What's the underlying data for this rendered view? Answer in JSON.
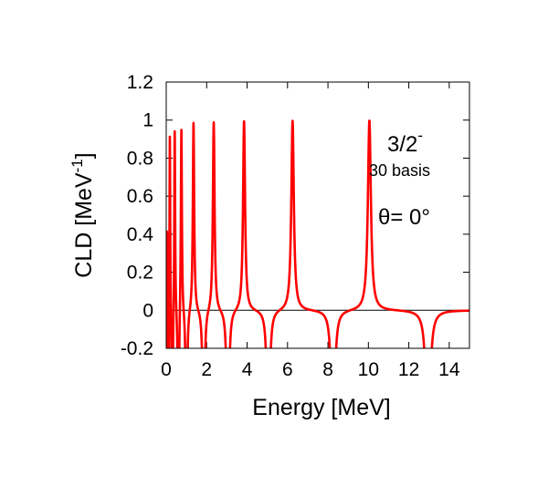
{
  "chart_data": {
    "type": "line",
    "title": "",
    "xlabel": "Energy [MeV]",
    "ylabel": "CLD [MeV",
    "ylabel_sup": "-1",
    "ylabel_end": "]",
    "xlim": [
      0,
      15
    ],
    "ylim": [
      -0.2,
      1.2
    ],
    "xticks": [
      0,
      2,
      4,
      6,
      8,
      10,
      12,
      14
    ],
    "xtick_labels": [
      "0",
      "2",
      "4",
      "6",
      "8",
      "10",
      "12",
      "14"
    ],
    "yticks": [
      -0.2,
      0,
      0.2,
      0.4,
      0.6,
      0.8,
      1,
      1.2
    ],
    "ytick_labels": [
      "-0.2",
      "0",
      "0.2",
      "0.4",
      "0.6",
      "0.8",
      "1",
      "1.2"
    ],
    "grid": false,
    "zero_line": true,
    "series_color": "#ff0000",
    "annotations": {
      "state": "3/2",
      "state_sup": "-",
      "basis": "30 basis",
      "theta": "θ=  0°"
    },
    "resonances": [
      {
        "e": 0.04,
        "w": 0.015,
        "a": 0.5
      },
      {
        "e": 0.18,
        "w": 0.02,
        "a": 1.0
      },
      {
        "e": 0.42,
        "w": 0.025,
        "a": 1.0
      },
      {
        "e": 0.75,
        "w": 0.03,
        "a": 1.0
      },
      {
        "e": 1.35,
        "w": 0.04,
        "a": 1.0
      },
      {
        "e": 2.35,
        "w": 0.05,
        "a": 1.0
      },
      {
        "e": 3.85,
        "w": 0.06,
        "a": 1.0
      },
      {
        "e": 6.25,
        "w": 0.075,
        "a": 1.0
      },
      {
        "e": 10.05,
        "w": 0.09,
        "a": 1.0
      }
    ],
    "dips": [
      {
        "e": 0.1,
        "w": 0.02,
        "a": 1.0
      },
      {
        "e": 0.3,
        "w": 0.025,
        "a": 1.0
      },
      {
        "e": 0.6,
        "w": 0.03,
        "a": 1.0
      },
      {
        "e": 1.0,
        "w": 0.035,
        "a": 1.0
      },
      {
        "e": 1.85,
        "w": 0.045,
        "a": 1.0
      },
      {
        "e": 3.05,
        "w": 0.055,
        "a": 1.0
      },
      {
        "e": 5.05,
        "w": 0.065,
        "a": 1.0
      },
      {
        "e": 8.25,
        "w": 0.08,
        "a": 1.0
      },
      {
        "e": 12.95,
        "w": 0.095,
        "a": 1.0
      }
    ]
  }
}
